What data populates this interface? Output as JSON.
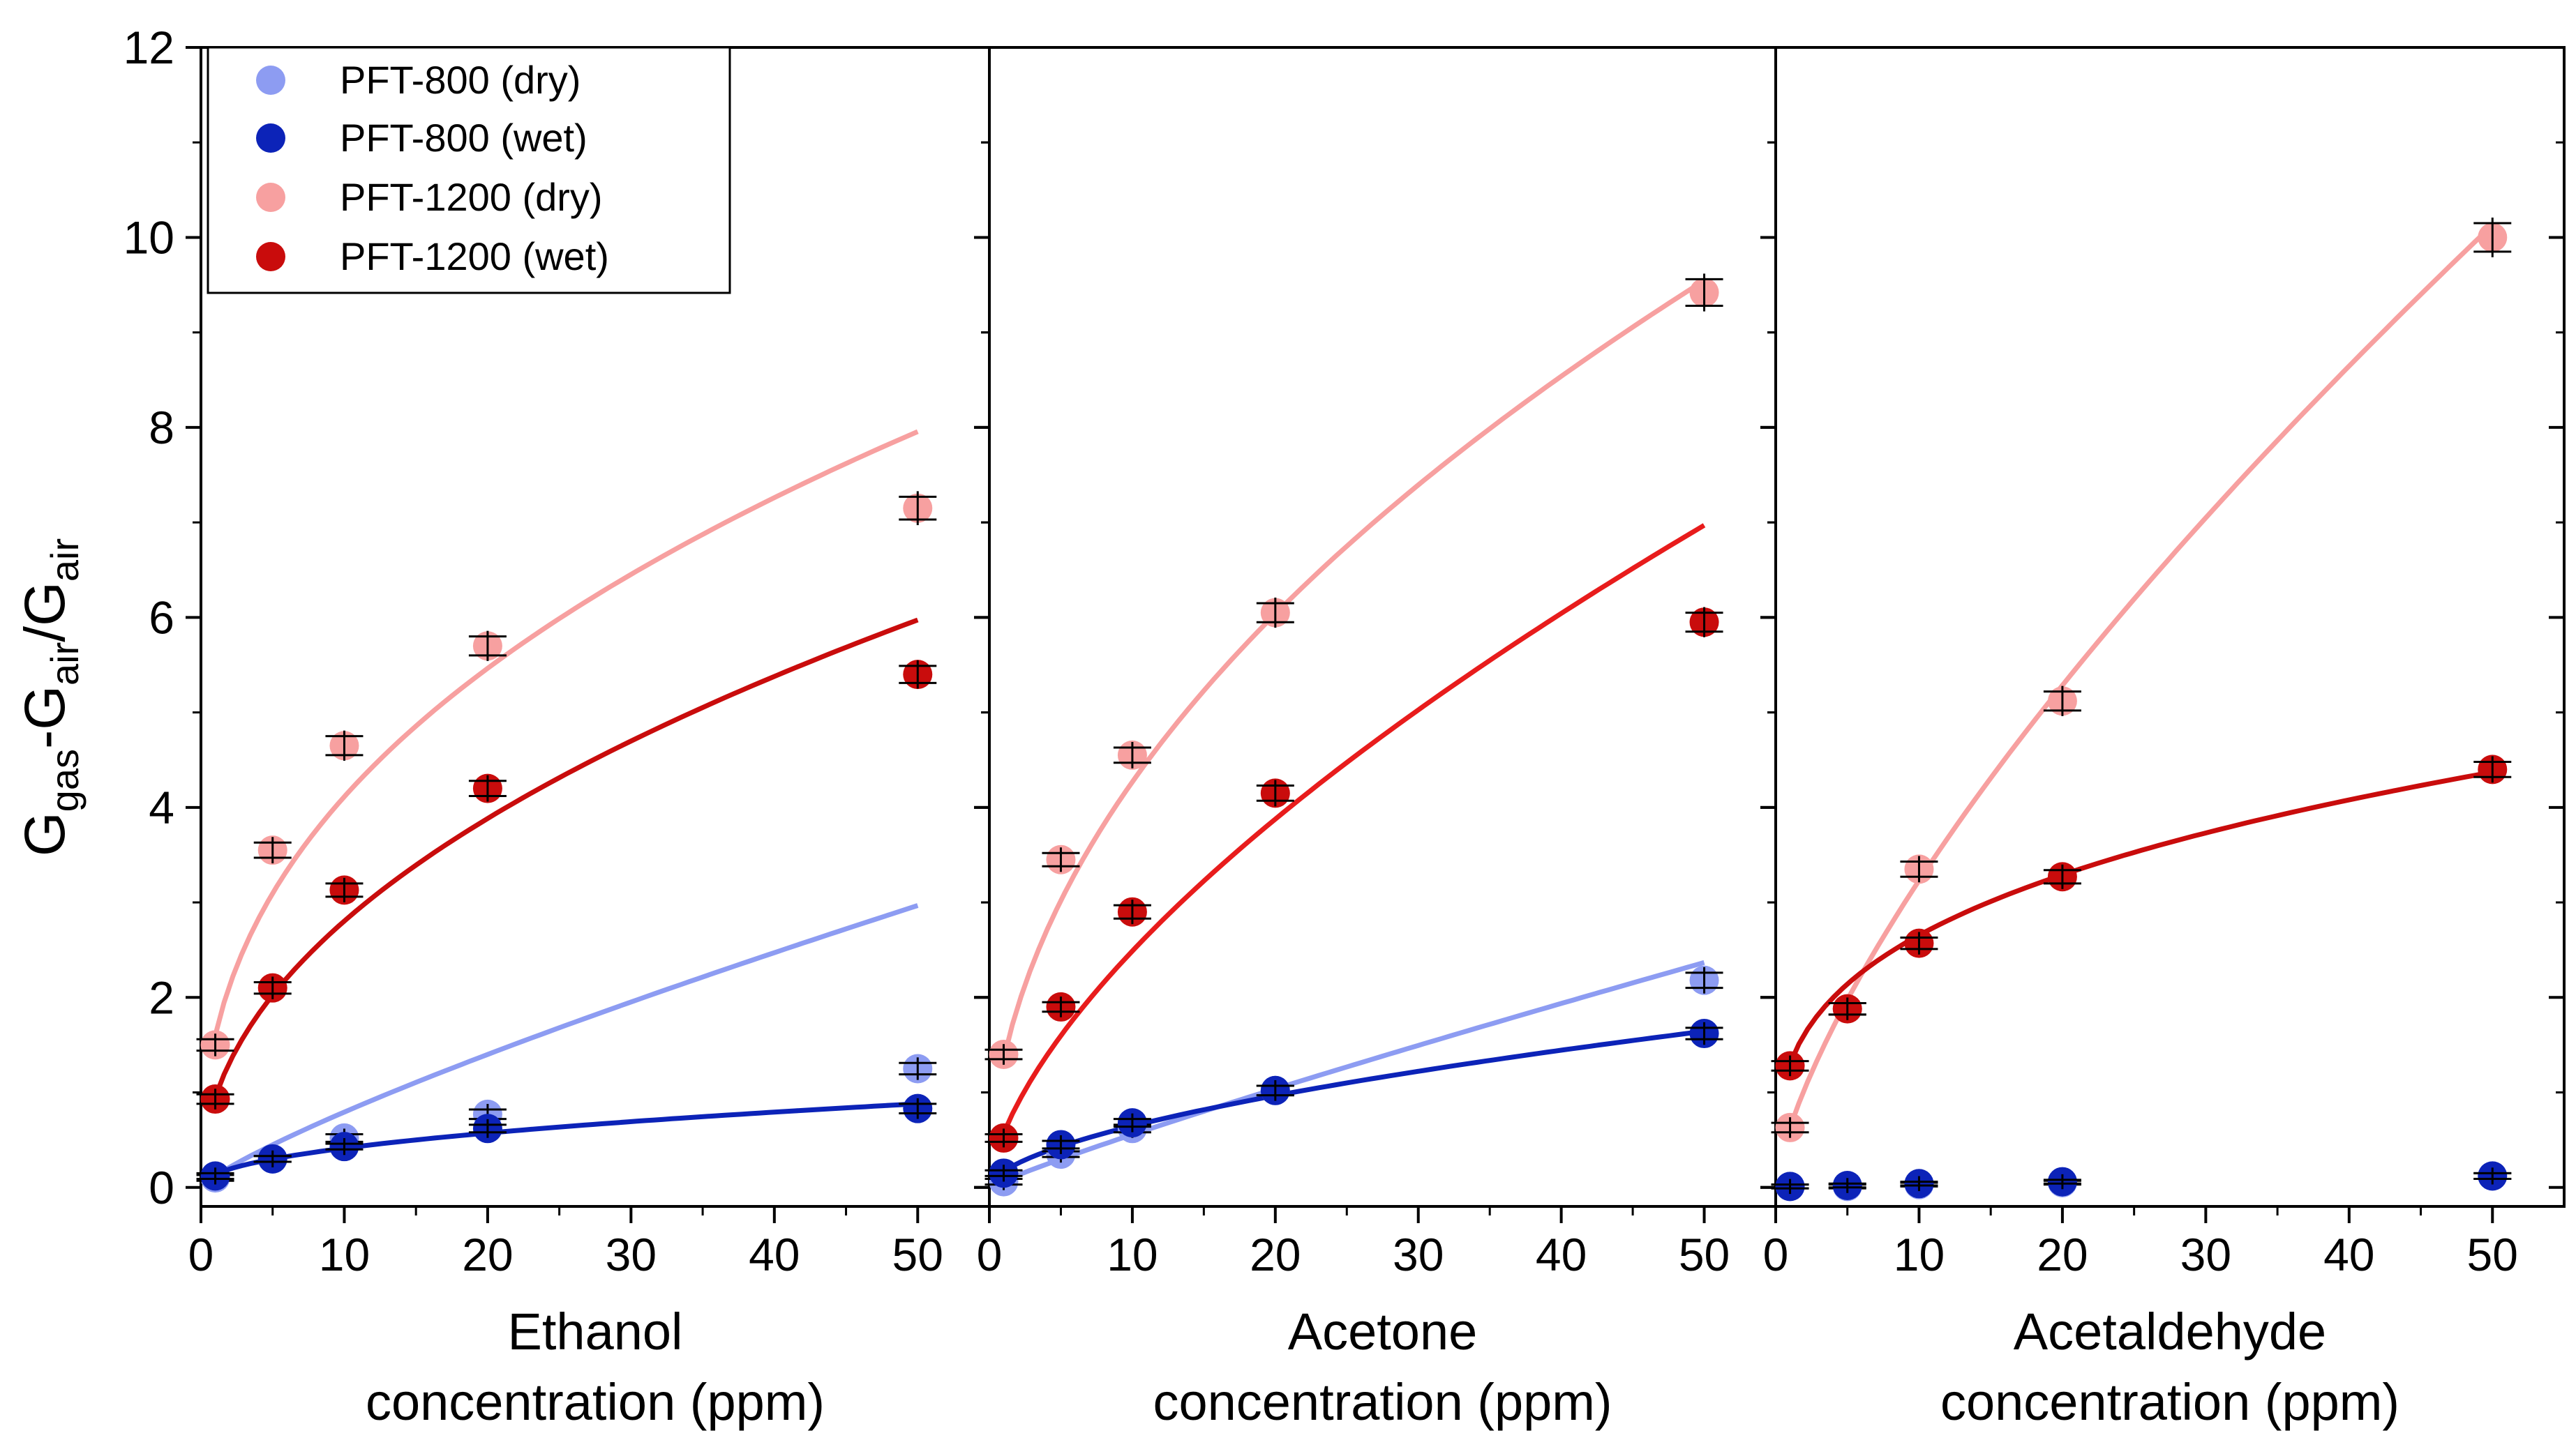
{
  "chart_data": {
    "type": "scatter",
    "y_axis": {
      "label_main": "G",
      "label_sub1": "gas",
      "label_mid": "-G",
      "label_sub2": "air",
      "label_slash": "/G",
      "label_sub3": "air",
      "ylim": [
        -0.2,
        12
      ],
      "ticks": [
        0,
        2,
        4,
        6,
        8,
        10,
        12
      ]
    },
    "x_axis": {
      "xlim": [
        0,
        55
      ],
      "ticks": [
        0,
        10,
        20,
        30,
        40,
        50
      ]
    },
    "legend": [
      {
        "name": "PFT-800 (dry)",
        "color": "#8d9cf2"
      },
      {
        "name": "PFT-800 (wet)",
        "color": "#0c23b8"
      },
      {
        "name": "PFT-1200 (dry)",
        "color": "#f7a0a0"
      },
      {
        "name": "PFT-1200 (wet)",
        "color": "#c90c0c"
      }
    ],
    "panels": [
      {
        "gas": "Ethanol",
        "xlabel_line2": "concentration (ppm)",
        "x": [
          1,
          5,
          10,
          20,
          50
        ],
        "series": [
          {
            "name": "PFT-800 (dry)",
            "values": [
              0.1,
              0.3,
              0.52,
              0.77,
              1.25
            ],
            "err": [
              0.03,
              0.03,
              0.04,
              0.05,
              0.06
            ],
            "fit": [
              1.0,
              0.12,
              0.82
            ],
            "fit_color": "#8d9cf2"
          },
          {
            "name": "PFT-800 (wet)",
            "values": [
              0.12,
              0.3,
              0.43,
              0.62,
              0.83
            ],
            "err": [
              0.03,
              0.03,
              0.03,
              0.04,
              0.05
            ],
            "fit": [
              1.0,
              0.14,
              0.47
            ],
            "fit_color": "#0c23b8"
          },
          {
            "name": "PFT-1200 (dry)",
            "values": [
              1.5,
              3.55,
              4.65,
              5.7,
              7.15
            ],
            "err": [
              0.06,
              0.08,
              0.1,
              0.1,
              0.12
            ],
            "fit": [
              1.0,
              1.6,
              0.41
            ],
            "fit_color": "#f7a0a0"
          },
          {
            "name": "PFT-1200 (wet)",
            "values": [
              0.93,
              2.1,
              3.13,
              4.2,
              5.4
            ],
            "err": [
              0.05,
              0.06,
              0.07,
              0.08,
              0.09
            ],
            "fit": [
              1.0,
              0.95,
              0.47
            ],
            "fit_color": "#c90c0c"
          }
        ]
      },
      {
        "gas": "Acetone",
        "xlabel_line2": "concentration (ppm)",
        "x": [
          1,
          5,
          10,
          20,
          50
        ],
        "series": [
          {
            "name": "PFT-800 (dry)",
            "values": [
              0.06,
              0.35,
              0.62,
              1.02,
              2.18
            ],
            "err": [
              0.03,
              0.03,
              0.04,
              0.05,
              0.08
            ],
            "fit": [
              1.0,
              0.07,
              0.9
            ],
            "fit_color": "#8d9cf2"
          },
          {
            "name": "PFT-800 (wet)",
            "values": [
              0.15,
              0.45,
              0.68,
              1.02,
              1.62
            ],
            "err": [
              0.03,
              0.04,
              0.04,
              0.05,
              0.06
            ],
            "fit": [
              1.0,
              0.17,
              0.58
            ],
            "fit_color": "#0c23b8"
          },
          {
            "name": "PFT-1200 (dry)",
            "values": [
              1.4,
              3.45,
              4.55,
              6.05,
              9.42
            ],
            "err": [
              0.05,
              0.07,
              0.08,
              0.1,
              0.14
            ],
            "fit": [
              1.0,
              1.35,
              0.5
            ],
            "fit_color": "#f7a0a0"
          },
          {
            "name": "PFT-1200 (wet)",
            "values": [
              0.52,
              1.9,
              2.9,
              4.15,
              5.95
            ],
            "err": [
              0.04,
              0.05,
              0.07,
              0.08,
              0.1
            ],
            "fit": [
              1.0,
              0.57,
              0.64
            ],
            "fit_color": "#e81c1c"
          }
        ]
      },
      {
        "gas": "Acetaldehyde",
        "xlabel_line2": "concentration (ppm)",
        "x": [
          1,
          5,
          10,
          20,
          50
        ],
        "series": [
          {
            "name": "PFT-800 (dry)",
            "values": [
              0.01,
              0.01,
              0.03,
              0.05,
              0.12
            ],
            "err": [
              0.02,
              0.02,
              0.02,
              0.02,
              0.03
            ],
            "fit": null,
            "fit_color": "#8d9cf2"
          },
          {
            "name": "PFT-800 (wet)",
            "values": [
              0.01,
              0.02,
              0.04,
              0.06,
              0.12
            ],
            "err": [
              0.02,
              0.02,
              0.02,
              0.02,
              0.03
            ],
            "fit": null,
            "fit_color": "#0c23b8"
          },
          {
            "name": "PFT-1200 (dry)",
            "values": [
              0.63,
              1.88,
              3.35,
              5.12,
              10.0
            ],
            "err": [
              0.05,
              0.06,
              0.08,
              0.1,
              0.15
            ],
            "fit": [
              1.0,
              0.63,
              0.71
            ],
            "fit_color": "#f7a0a0"
          },
          {
            "name": "PFT-1200 (wet)",
            "values": [
              1.28,
              1.88,
              2.57,
              3.27,
              4.4
            ],
            "err": [
              0.05,
              0.06,
              0.06,
              0.07,
              0.08
            ],
            "fit": [
              1.0,
              1.3,
              0.31
            ],
            "fit_color": "#c90c0c"
          }
        ]
      }
    ]
  }
}
